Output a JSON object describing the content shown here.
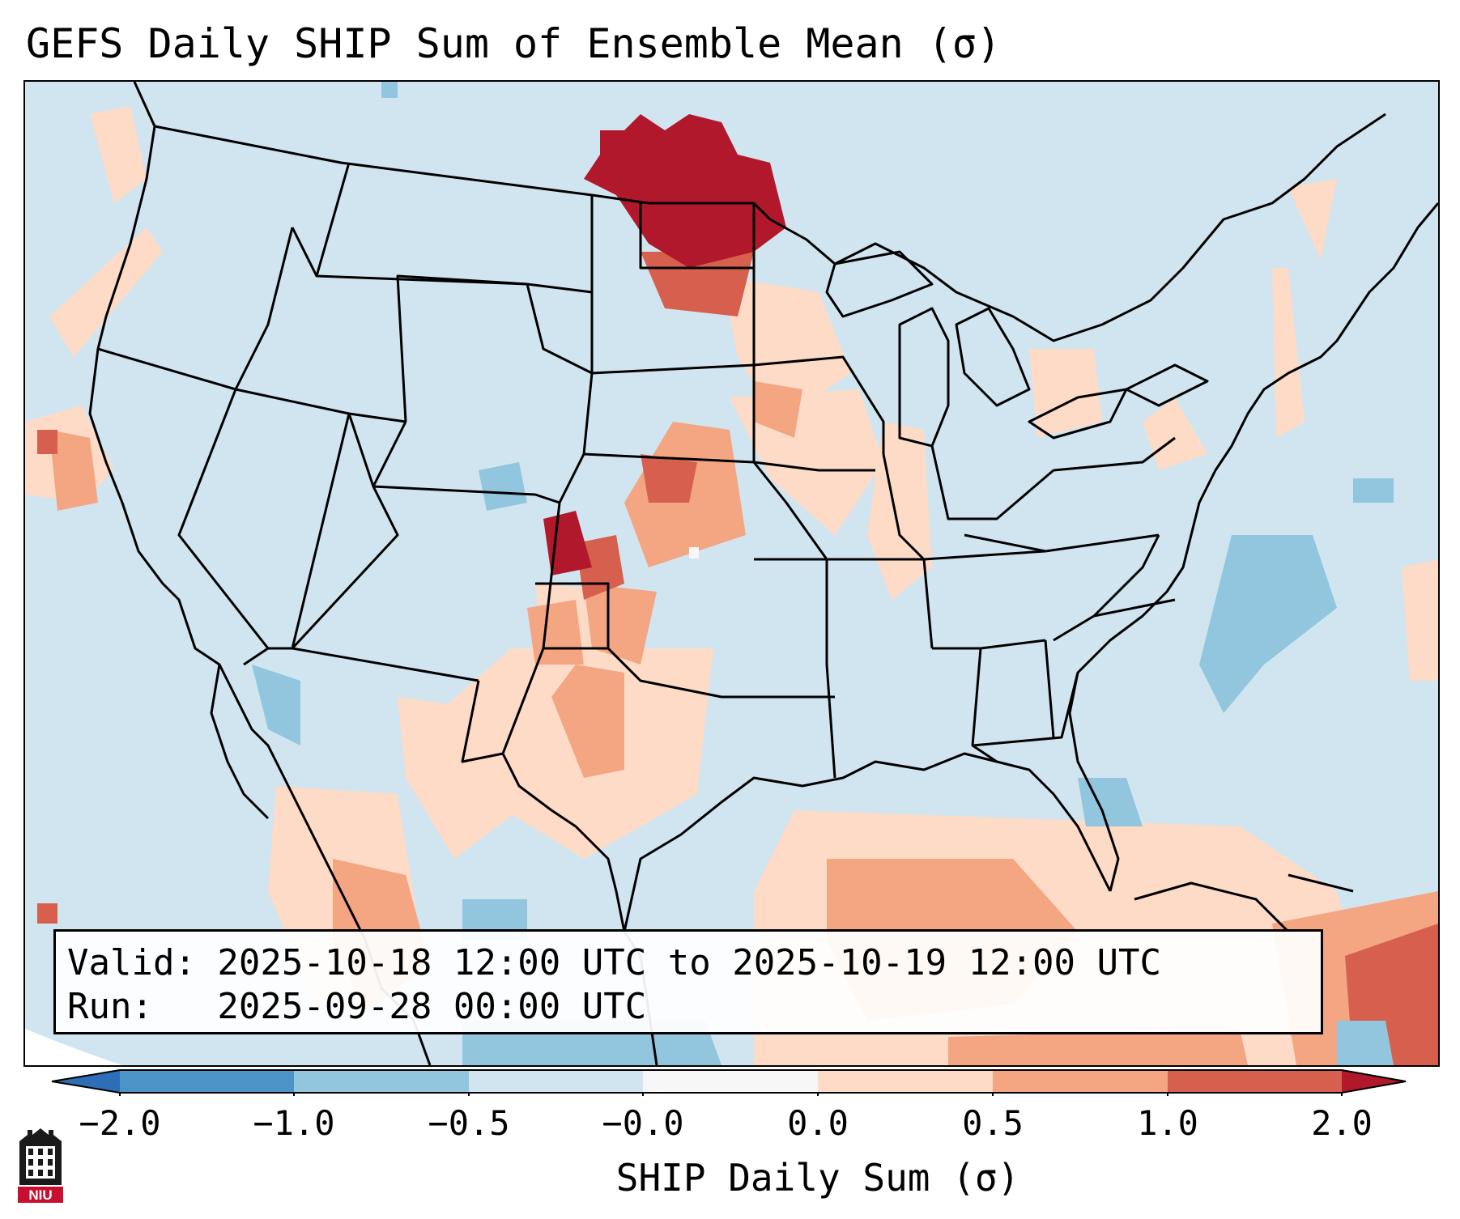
{
  "header": {
    "title": "GEFS Daily SHIP Sum of Ensemble Mean (σ)"
  },
  "info": {
    "valid_line": "Valid: 2025-10-18 12:00 UTC to 2025-10-19 12:00 UTC",
    "run_line": "Run:   2025-09-28 00:00 UTC"
  },
  "colorbar": {
    "label": "SHIP Daily Sum (σ)",
    "ticks": [
      "−2.0",
      "−1.0",
      "−0.5",
      "−0.0",
      "0.0",
      "0.5",
      "1.0",
      "2.0"
    ],
    "bins": [
      {
        "range": "< -2.0",
        "color": "#2c6fb6"
      },
      {
        "range": "-2.0 to -1.0",
        "color": "#4a94c8"
      },
      {
        "range": "-1.0 to -0.5",
        "color": "#92c5de"
      },
      {
        "range": "-0.5 to -0.0",
        "color": "#d1e5f0"
      },
      {
        "range": "-0.0 to 0.0",
        "color": "#f7f7f7"
      },
      {
        "range": "0.0 to 0.5",
        "color": "#fddbc7"
      },
      {
        "range": "0.5 to 1.0",
        "color": "#f4a582"
      },
      {
        "range": "1.0 to 2.0",
        "color": "#d6604d"
      },
      {
        "range": "> 2.0",
        "color": "#b2182b"
      }
    ]
  },
  "logo": {
    "text": "NIU",
    "color": "#c8102e"
  }
}
